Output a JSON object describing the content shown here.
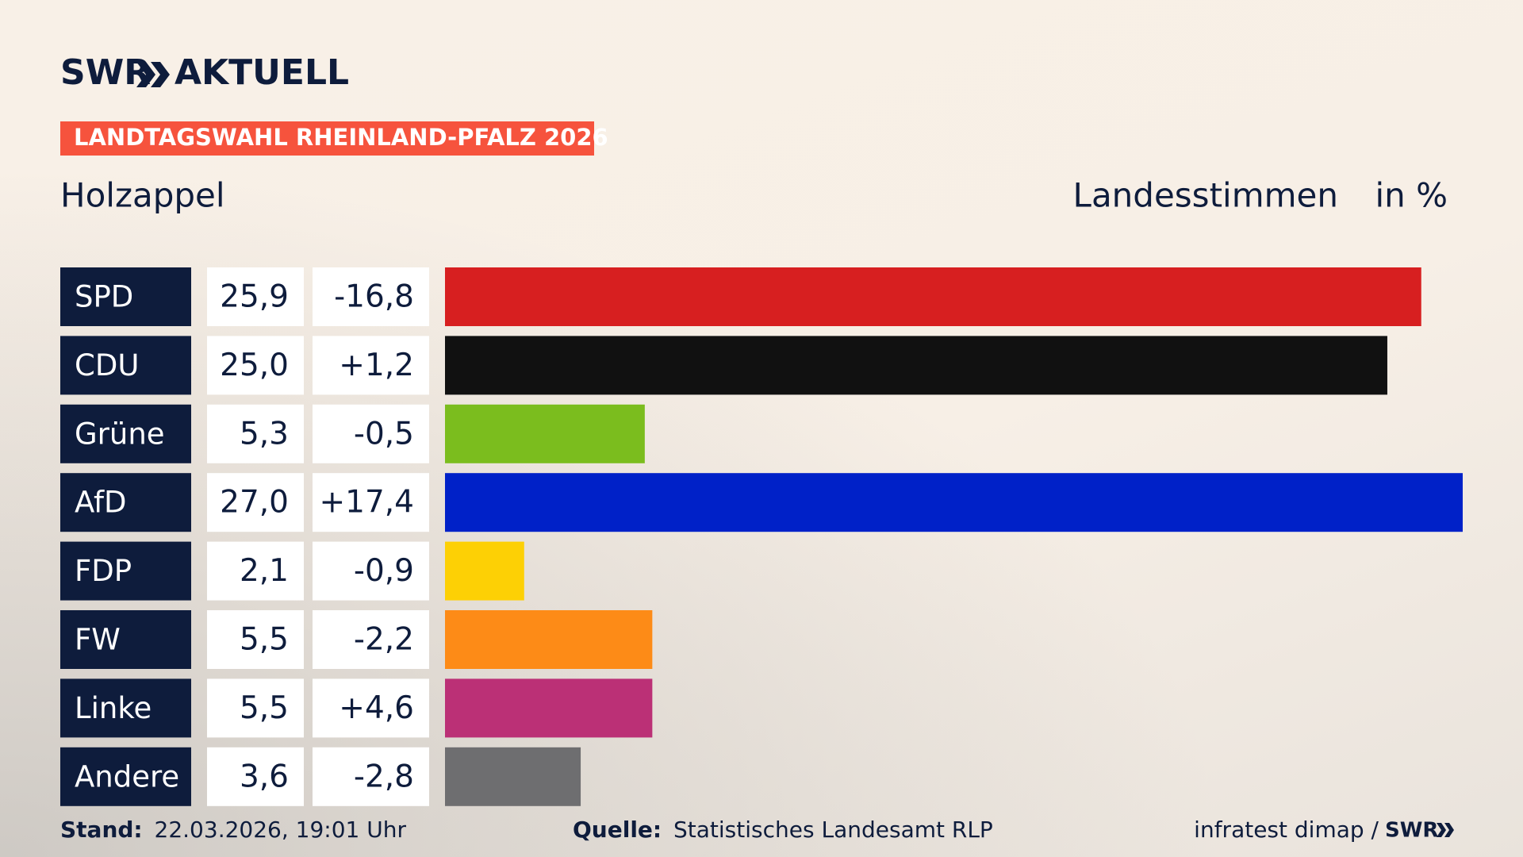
{
  "brand": {
    "logo": "SWR",
    "logo_suffix": "AKTUELL",
    "banner": "LANDTAGSWAHL RHEINLAND-PFALZ 2026"
  },
  "chart_data": {
    "type": "bar",
    "orientation": "horizontal",
    "title": "Holzappel",
    "value_header": "Landesstimmen",
    "unit": "in %",
    "categories": [
      "SPD",
      "CDU",
      "Grüne",
      "AfD",
      "FDP",
      "FW",
      "Linke",
      "Andere"
    ],
    "values": [
      25.9,
      25.0,
      5.3,
      27.0,
      2.1,
      5.5,
      5.5,
      3.6
    ],
    "value_labels": [
      "25,9",
      "25,0",
      "5,3",
      "27,0",
      "2,1",
      "5,5",
      "5,5",
      "3,6"
    ],
    "changes": [
      -16.8,
      1.2,
      -0.5,
      17.4,
      -0.9,
      -2.2,
      4.6,
      -2.8
    ],
    "change_labels": [
      "-16,8",
      "+1,2",
      "-0,5",
      "+17,4",
      "-0,9",
      "-2,2",
      "+4,6",
      "-2,8"
    ],
    "colors": [
      "#d71f20",
      "#111111",
      "#7bbd1e",
      "#0021c8",
      "#fdd005",
      "#fd8b17",
      "#bb3076",
      "#6e6e70"
    ]
  },
  "footer": {
    "stand_label": "Stand:",
    "stand_value": "22.03.2026, 19:01 Uhr",
    "source_label": "Quelle:",
    "source_value": "Statistisches Landesamt RLP",
    "credit": "infratest dimap /",
    "credit_logo": "SWR"
  }
}
